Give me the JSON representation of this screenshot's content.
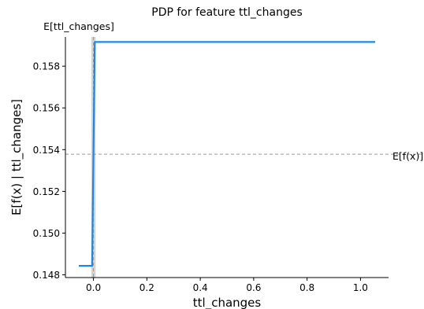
{
  "chart_data": {
    "type": "line",
    "title": "PDP for feature ttl_changes",
    "xlabel": "ttl_changes",
    "ylabel": "E[f(x) | ttl_changes]",
    "xlim": [
      -0.105,
      1.105
    ],
    "ylim": [
      0.14787,
      0.1594
    ],
    "xticks": [
      0.0,
      0.2,
      0.4,
      0.6,
      0.8,
      1.0
    ],
    "xtick_labels": [
      "0.0",
      "0.2",
      "0.4",
      "0.6",
      "0.8",
      "1.0"
    ],
    "yticks": [
      0.148,
      0.15,
      0.152,
      0.154,
      0.156,
      0.158
    ],
    "ytick_labels": [
      "0.148",
      "0.150",
      "0.152",
      "0.154",
      "0.156",
      "0.158"
    ],
    "series": [
      {
        "x": [
          -0.055,
          -0.005,
          0.005,
          1.055
        ],
        "y": [
          0.14843,
          0.14843,
          0.15916,
          0.15916
        ],
        "color": "#1e88e5"
      }
    ],
    "expected_value": {
      "y": 0.15378,
      "label": "E[f(x)]",
      "style": "dashed",
      "color": "#999999"
    },
    "feature_expected": {
      "x": 0.0,
      "label": "E[ttl_changes]",
      "style": "dashed",
      "color": "#999999"
    },
    "histogram_band": {
      "x": [
        -0.008,
        0.008
      ],
      "color": "#cccccc"
    },
    "grid": false
  }
}
